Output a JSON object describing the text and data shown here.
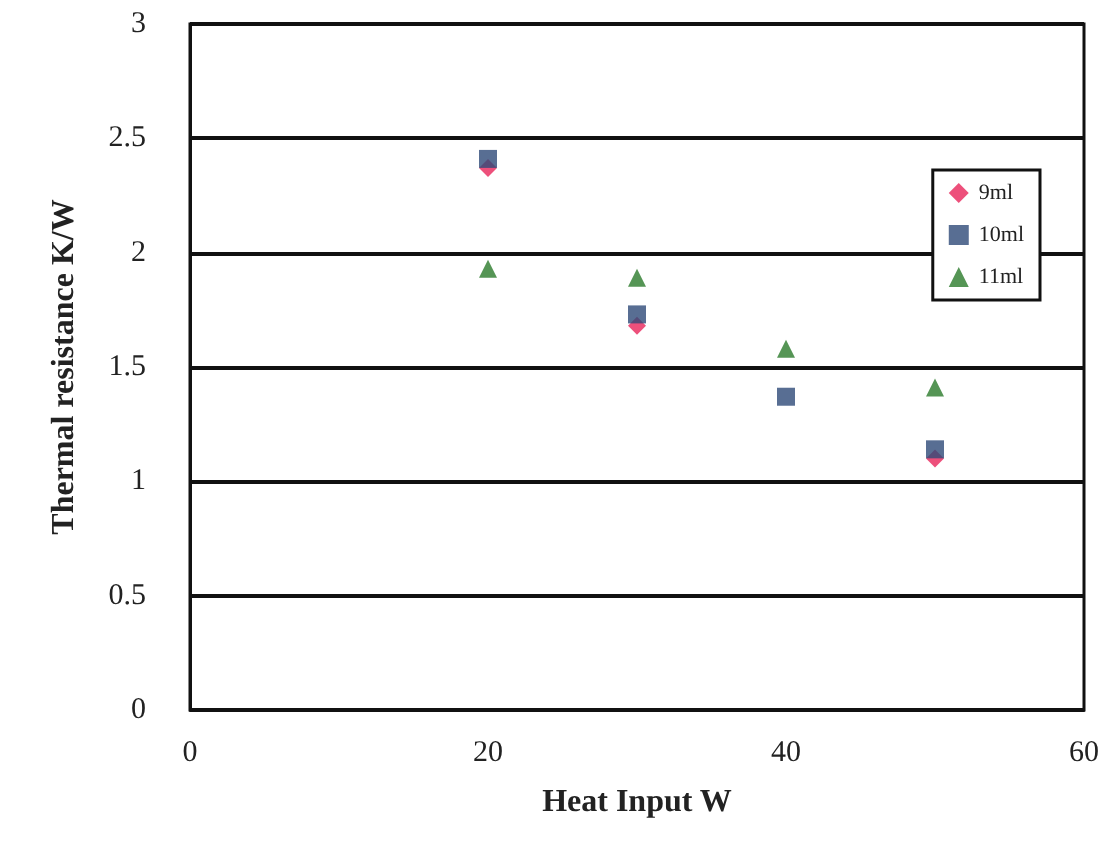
{
  "chart_data": {
    "type": "scatter",
    "xlabel": "Heat Input W",
    "ylabel": "Thermal resistance K/W",
    "x": [
      20,
      30,
      40,
      50
    ],
    "series": [
      {
        "name": "9ml",
        "color": "#e8245a",
        "marker": "diamond",
        "values": [
          2.37,
          1.68,
          null,
          1.1
        ]
      },
      {
        "name": "10ml",
        "color": "#2e4a78",
        "marker": "square",
        "values": [
          2.41,
          1.73,
          1.37,
          1.14
        ]
      },
      {
        "name": "11ml",
        "color": "#2a7a2a",
        "marker": "triangle",
        "values": [
          1.93,
          1.89,
          1.58,
          1.41
        ]
      }
    ],
    "xlim": [
      0,
      60
    ],
    "xticks": [
      0,
      20,
      40,
      60
    ],
    "ylim": [
      0,
      3
    ],
    "yticks": [
      0,
      0.5,
      1,
      1.5,
      2,
      2.5,
      3
    ],
    "grid": "y",
    "legend": "right"
  }
}
